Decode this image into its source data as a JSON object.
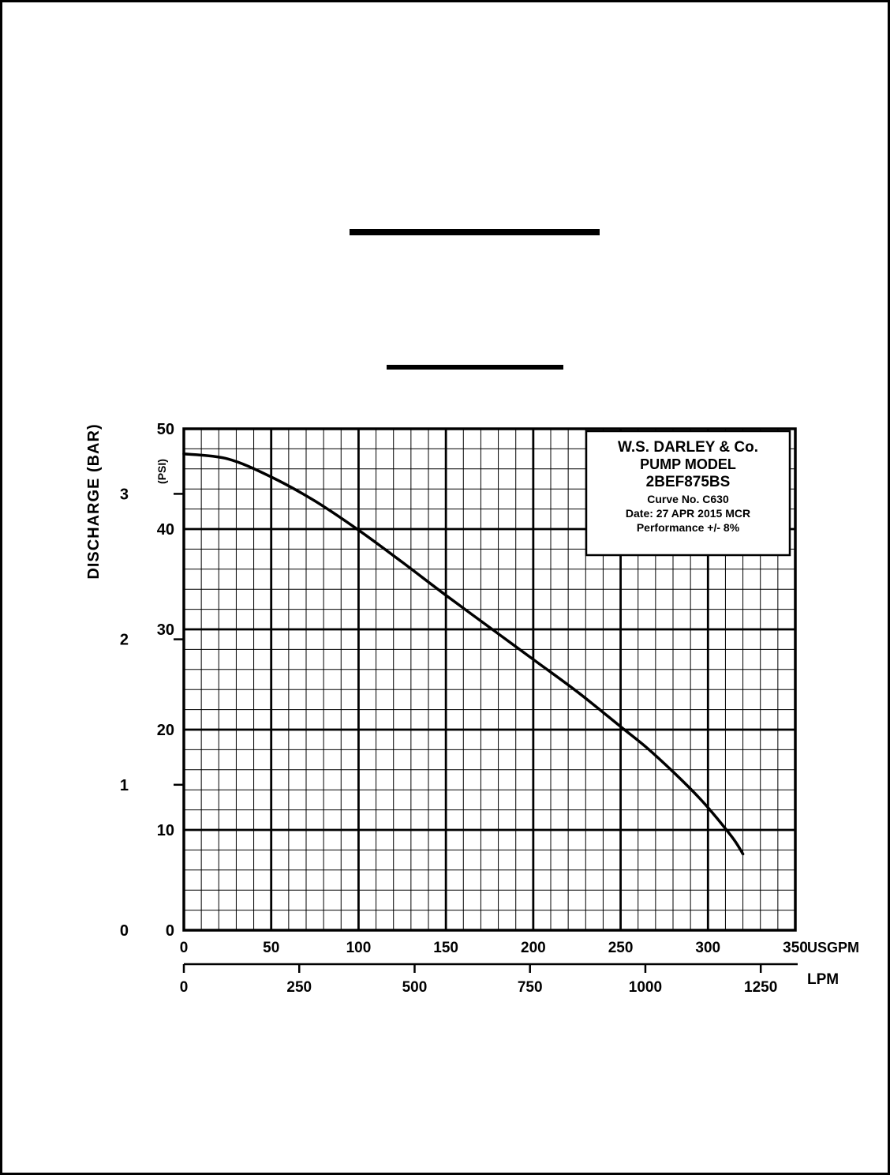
{
  "page": {
    "background": "#ffffff",
    "ink_color": "#000000"
  },
  "chart_data": {
    "type": "line",
    "title": "",
    "y_axis": {
      "title": "DISCHARGE (BAR)",
      "secondary_unit_label": "(PSI)",
      "psi_ticks": [
        50,
        40,
        30,
        20,
        10,
        0
      ],
      "psi_range": [
        0,
        50
      ],
      "major_step_psi": 10,
      "minor_step_psi": 2,
      "bar_ticks": [
        3,
        2,
        1,
        0
      ],
      "psi_per_bar": 14.5038
    },
    "x_axis": {
      "unit_label": "USGPM",
      "usgpm_ticks": [
        0,
        50,
        100,
        150,
        200,
        250,
        300,
        350
      ],
      "usgpm_range": [
        0,
        350
      ],
      "major_step_usgpm": 50,
      "minor_step_usgpm": 10,
      "secondary_unit_label": "LPM",
      "lpm_ticks": [
        0,
        250,
        500,
        750,
        1000,
        1250
      ],
      "lpm_per_usgpm": 3.78541
    },
    "grid": {
      "enabled": true,
      "style": "engineering-grid-black"
    },
    "series": [
      {
        "name": "head-capacity-curve",
        "points_usgpm_psi": [
          [
            0,
            47.5
          ],
          [
            25,
            47.0
          ],
          [
            50,
            45.2
          ],
          [
            75,
            42.8
          ],
          [
            100,
            39.9
          ],
          [
            125,
            36.7
          ],
          [
            150,
            33.4
          ],
          [
            175,
            30.2
          ],
          [
            200,
            27.0
          ],
          [
            225,
            23.8
          ],
          [
            250,
            20.3
          ],
          [
            265,
            18.2
          ],
          [
            280,
            15.8
          ],
          [
            295,
            13.2
          ],
          [
            305,
            11.2
          ],
          [
            315,
            9.0
          ],
          [
            320,
            7.6
          ]
        ]
      }
    ],
    "info_box": {
      "company": "W.S. DARLEY & Co.",
      "model_label": "PUMP MODEL",
      "model": "2BEF875BS",
      "curve_no": "Curve No. C630",
      "date": "Date: 27 APR 2015 MCR",
      "performance": "Performance +/- 8%"
    }
  }
}
